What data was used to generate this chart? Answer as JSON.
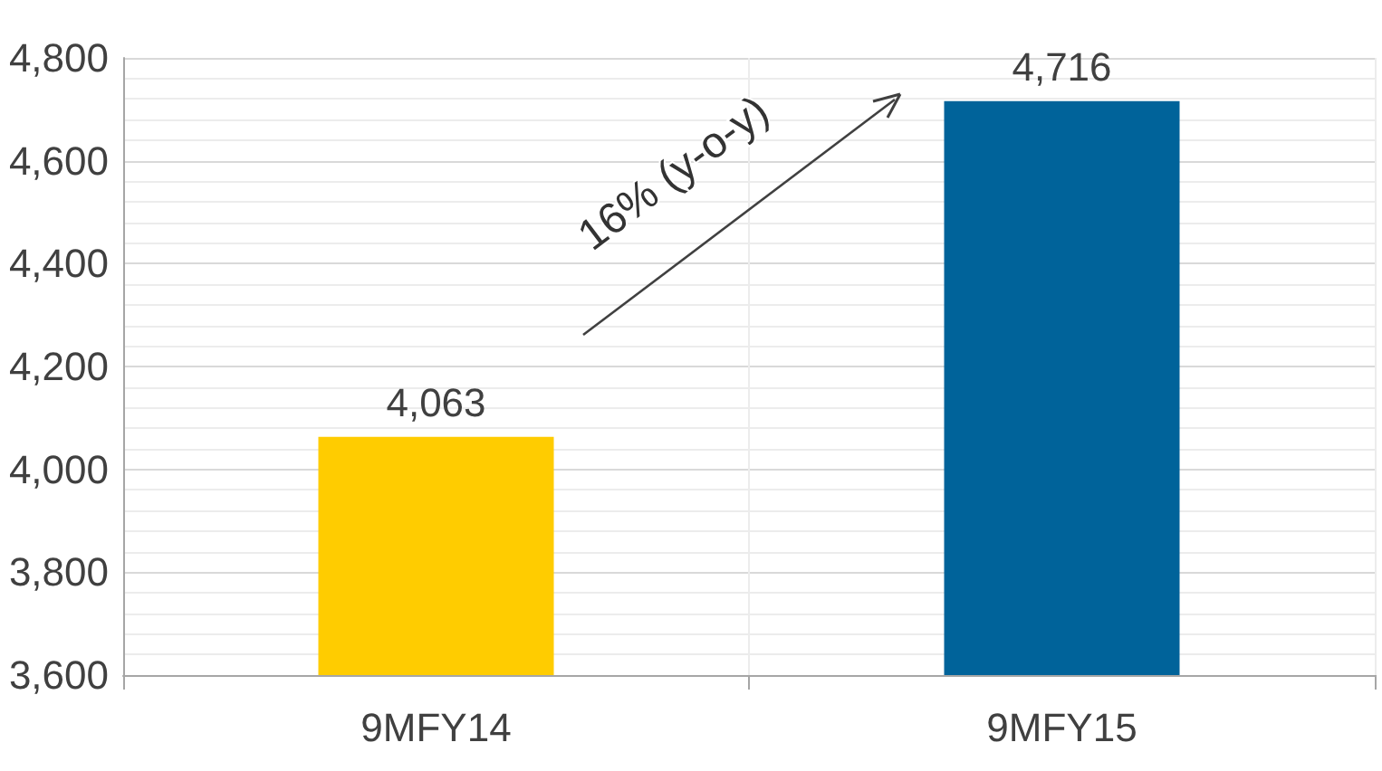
{
  "chart_data": {
    "type": "bar",
    "categories": [
      "9MFY14",
      "9MFY15"
    ],
    "values": [
      4063,
      4716
    ],
    "value_labels": [
      "4,063",
      "4,716"
    ],
    "colors": [
      "#ffcc00",
      "#00639a"
    ],
    "ylim": [
      3600,
      4800
    ],
    "yticks": [
      {
        "value": 3600,
        "label": "3,600"
      },
      {
        "value": 3800,
        "label": "3,800"
      },
      {
        "value": 4000,
        "label": "4,000"
      },
      {
        "value": 4200,
        "label": "4,200"
      },
      {
        "value": 4400,
        "label": "4,400"
      },
      {
        "value": 4600,
        "label": "4,600"
      },
      {
        "value": 4800,
        "label": "4,800"
      }
    ],
    "grid": true,
    "annotations": [
      "16% (y-o-y)"
    ]
  }
}
